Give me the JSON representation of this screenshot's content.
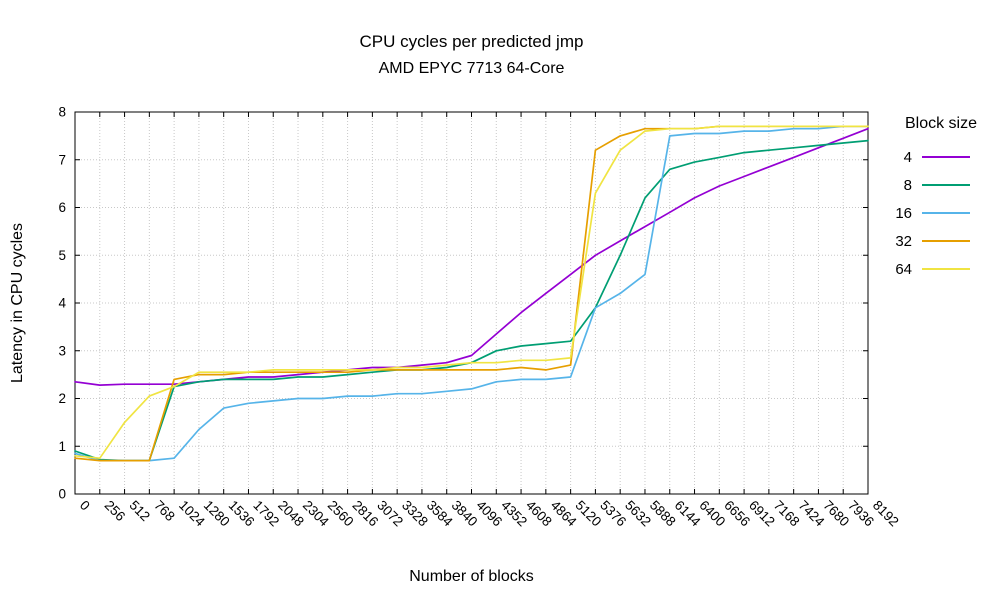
{
  "title": "CPU cycles per predicted jmp",
  "subtitle": "AMD EPYC 7713 64-Core",
  "chart_data": {
    "type": "line",
    "title": "CPU cycles per predicted jmp",
    "subtitle": "AMD EPYC 7713 64-Core",
    "xlabel": "Number of blocks",
    "ylabel": "Latency in CPU cycles",
    "xlim": [
      0,
      8192
    ],
    "ylim": [
      0,
      8
    ],
    "x_tick_step": 256,
    "y_tick_step": 1,
    "grid": true,
    "legend_title": "Block size",
    "legend_position": "right",
    "grid_color": "#c8c8c8",
    "x": [
      0,
      256,
      512,
      768,
      1024,
      1280,
      1536,
      1792,
      2048,
      2304,
      2560,
      2816,
      3072,
      3328,
      3584,
      3840,
      4096,
      4352,
      4608,
      4864,
      5120,
      5376,
      5632,
      5888,
      6144,
      6400,
      6656,
      6912,
      7168,
      7424,
      7680,
      7936,
      8192
    ],
    "series": [
      {
        "name": "4",
        "color": "#9400d3",
        "values": [
          2.35,
          2.28,
          2.3,
          2.3,
          2.3,
          2.35,
          2.4,
          2.45,
          2.45,
          2.5,
          2.55,
          2.6,
          2.65,
          2.65,
          2.7,
          2.75,
          2.9,
          3.35,
          3.8,
          4.2,
          4.6,
          5.0,
          5.3,
          5.6,
          5.9,
          6.2,
          6.45,
          6.65,
          6.85,
          7.05,
          7.25,
          7.45,
          7.65
        ]
      },
      {
        "name": "8",
        "color": "#009e73",
        "values": [
          0.9,
          0.72,
          0.7,
          0.7,
          2.25,
          2.35,
          2.4,
          2.4,
          2.4,
          2.45,
          2.45,
          2.5,
          2.55,
          2.6,
          2.6,
          2.65,
          2.75,
          3.0,
          3.1,
          3.15,
          3.2,
          3.9,
          5.0,
          6.2,
          6.8,
          6.95,
          7.05,
          7.15,
          7.2,
          7.25,
          7.3,
          7.35,
          7.4
        ]
      },
      {
        "name": "16",
        "color": "#56b4e9",
        "values": [
          0.85,
          0.7,
          0.7,
          0.7,
          0.75,
          1.35,
          1.8,
          1.9,
          1.95,
          2.0,
          2.0,
          2.05,
          2.05,
          2.1,
          2.1,
          2.15,
          2.2,
          2.35,
          2.4,
          2.4,
          2.45,
          3.9,
          4.2,
          4.6,
          7.5,
          7.55,
          7.55,
          7.6,
          7.6,
          7.65,
          7.65,
          7.7,
          7.7
        ]
      },
      {
        "name": "32",
        "color": "#e69f00",
        "values": [
          0.75,
          0.7,
          0.7,
          0.7,
          2.4,
          2.5,
          2.5,
          2.55,
          2.55,
          2.55,
          2.55,
          2.55,
          2.6,
          2.6,
          2.6,
          2.6,
          2.6,
          2.6,
          2.65,
          2.6,
          2.7,
          7.2,
          7.5,
          7.65,
          7.65,
          7.65,
          7.7,
          7.7,
          7.7,
          7.7,
          7.7,
          7.7,
          7.7
        ]
      },
      {
        "name": "64",
        "color": "#f0e442",
        "values": [
          0.8,
          0.75,
          1.5,
          2.05,
          2.25,
          2.55,
          2.55,
          2.55,
          2.6,
          2.6,
          2.6,
          2.6,
          2.6,
          2.65,
          2.65,
          2.7,
          2.75,
          2.75,
          2.8,
          2.8,
          2.85,
          6.3,
          7.2,
          7.6,
          7.65,
          7.65,
          7.7,
          7.7,
          7.7,
          7.7,
          7.7,
          7.7,
          7.7
        ]
      }
    ]
  }
}
